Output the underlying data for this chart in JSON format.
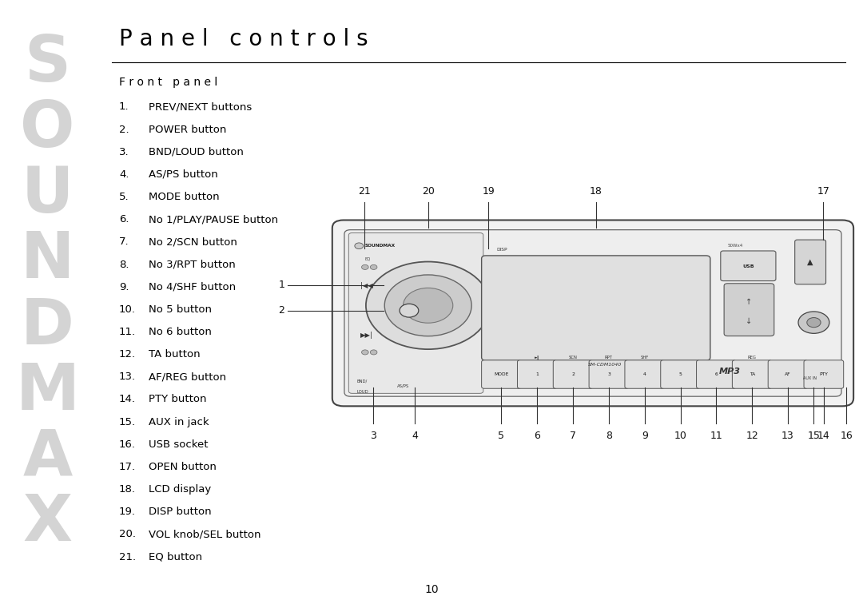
{
  "title": "P a n e l   c o n t r o l s",
  "subtitle": "F r o n t   p a n e l",
  "bg_color": "#ffffff",
  "text_color": "#000000",
  "watermark_color": "#d4d4d4",
  "watermark_letters": [
    "S",
    "O",
    "U",
    "N",
    "D",
    "M",
    "A",
    "X"
  ],
  "page_number": "10",
  "list_items": [
    [
      "1.",
      "PREV/NEXT buttons"
    ],
    [
      "2.",
      "POWER button"
    ],
    [
      "3.",
      "BND/LOUD button"
    ],
    [
      "4.",
      "AS/PS button"
    ],
    [
      "5.",
      "MODE button"
    ],
    [
      "6.",
      "No 1/PLAY/PAUSE button"
    ],
    [
      "7.",
      "No 2/SCN button"
    ],
    [
      "8.",
      "No 3/RPT button"
    ],
    [
      "9.",
      "No 4/SHF button"
    ],
    [
      "10.",
      "No 5 button"
    ],
    [
      "11.",
      "No 6 button"
    ],
    [
      "12.",
      "TA button"
    ],
    [
      "13.",
      "AF/REG button"
    ],
    [
      "14.",
      "PTY button"
    ],
    [
      "15.",
      "AUX in jack"
    ],
    [
      "16.",
      "USB socket"
    ],
    [
      "17.",
      "OPEN button"
    ],
    [
      "18.",
      "LCD display"
    ],
    [
      "19.",
      "DISP button"
    ],
    [
      "20.",
      "VOL knob/SEL button"
    ],
    [
      "21.",
      "EQ button"
    ]
  ]
}
